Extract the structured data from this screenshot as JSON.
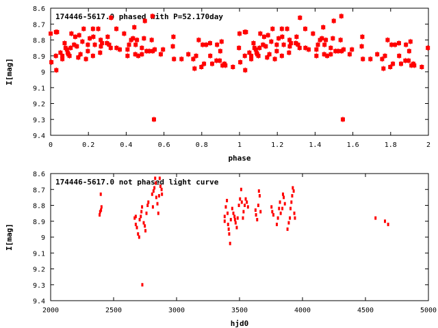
{
  "chart_data": [
    {
      "type": "scatter",
      "title": "174446-5617.0 phased with P=52.170day",
      "xlabel": "phase",
      "ylabel": "I[mag]",
      "xlim": [
        0,
        2
      ],
      "ylim": [
        9.4,
        8.6
      ],
      "y_inverted": true,
      "xticks": [
        "0",
        "0.2",
        "0.4",
        "0.6",
        "0.8",
        "1",
        "1.2",
        "1.4",
        "1.6",
        "1.8",
        "2"
      ],
      "yticks": [
        "8.6",
        "8.7",
        "8.8",
        "8.9",
        "9",
        "9.1",
        "9.2",
        "9.3",
        "9.4"
      ],
      "grid": false,
      "color": "#ff0000",
      "phase_repeated_cycles": 2,
      "points": [
        [
          0.0,
          8.76
        ],
        [
          0.004,
          8.94
        ],
        [
          0.028,
          8.75
        ],
        [
          0.034,
          8.75
        ],
        [
          0.028,
          8.9
        ],
        [
          0.03,
          8.99
        ],
        [
          0.052,
          8.88
        ],
        [
          0.062,
          8.9
        ],
        [
          0.062,
          8.92
        ],
        [
          0.074,
          8.82
        ],
        [
          0.079,
          8.85
        ],
        [
          0.086,
          8.86
        ],
        [
          0.09,
          8.88
        ],
        [
          0.094,
          8.89
        ],
        [
          0.1,
          8.9
        ],
        [
          0.106,
          8.85
        ],
        [
          0.11,
          8.76
        ],
        [
          0.124,
          8.83
        ],
        [
          0.13,
          8.78
        ],
        [
          0.139,
          8.84
        ],
        [
          0.146,
          8.91
        ],
        [
          0.151,
          8.77
        ],
        [
          0.158,
          8.89
        ],
        [
          0.168,
          8.81
        ],
        [
          0.175,
          8.73
        ],
        [
          0.187,
          8.92
        ],
        [
          0.197,
          8.83
        ],
        [
          0.197,
          8.87
        ],
        [
          0.207,
          8.79
        ],
        [
          0.224,
          8.73
        ],
        [
          0.226,
          8.78
        ],
        [
          0.224,
          8.9
        ],
        [
          0.234,
          8.83
        ],
        [
          0.252,
          8.73
        ],
        [
          0.262,
          8.88
        ],
        [
          0.265,
          8.8
        ],
        [
          0.266,
          8.84
        ],
        [
          0.272,
          8.82
        ],
        [
          0.298,
          8.82
        ],
        [
          0.302,
          8.78
        ],
        [
          0.31,
          8.83
        ],
        [
          0.318,
          8.85
        ],
        [
          0.32,
          8.66
        ],
        [
          0.348,
          8.73
        ],
        [
          0.349,
          8.85
        ],
        [
          0.366,
          8.86
        ],
        [
          0.389,
          8.76
        ],
        [
          0.407,
          8.86
        ],
        [
          0.407,
          8.9
        ],
        [
          0.415,
          8.83
        ],
        [
          0.426,
          8.8
        ],
        [
          0.436,
          8.79
        ],
        [
          0.443,
          8.72
        ],
        [
          0.448,
          8.89
        ],
        [
          0.45,
          8.83
        ],
        [
          0.457,
          8.8
        ],
        [
          0.464,
          8.9
        ],
        [
          0.483,
          8.85
        ],
        [
          0.483,
          8.89
        ],
        [
          0.494,
          8.79
        ],
        [
          0.499,
          8.68
        ],
        [
          0.508,
          8.87
        ],
        [
          0.522,
          8.87
        ],
        [
          0.535,
          8.8
        ],
        [
          0.539,
          8.65
        ],
        [
          0.54,
          8.87
        ],
        [
          0.547,
          9.3
        ],
        [
          0.551,
          8.86
        ],
        [
          0.583,
          8.89
        ],
        [
          0.595,
          8.86
        ],
        [
          0.647,
          8.84
        ],
        [
          0.65,
          8.78
        ],
        [
          0.653,
          8.92
        ],
        [
          0.693,
          8.92
        ],
        [
          0.729,
          8.89
        ],
        [
          0.755,
          8.92
        ],
        [
          0.762,
          8.98
        ],
        [
          0.77,
          8.9
        ],
        [
          0.784,
          8.8
        ],
        [
          0.798,
          8.97
        ],
        [
          0.805,
          8.83
        ],
        [
          0.812,
          8.95
        ],
        [
          0.823,
          8.83
        ],
        [
          0.844,
          8.82
        ],
        [
          0.845,
          8.9
        ],
        [
          0.855,
          8.95
        ],
        [
          0.878,
          8.93
        ],
        [
          0.881,
          8.83
        ],
        [
          0.895,
          8.93
        ],
        [
          0.898,
          8.87
        ],
        [
          0.905,
          8.81
        ],
        [
          0.91,
          8.96
        ],
        [
          0.92,
          8.95
        ],
        [
          0.925,
          8.96
        ],
        [
          0.965,
          8.97
        ],
        [
          0.997,
          8.85
        ]
      ]
    },
    {
      "type": "scatter",
      "title": "174446-5617.0 not phased light curve",
      "xlabel": "hjd0",
      "ylabel": "I[mag]",
      "xlim": [
        2000,
        5000
      ],
      "ylim": [
        9.4,
        8.6
      ],
      "y_inverted": true,
      "xticks": [
        "2000",
        "2500",
        "3000",
        "3500",
        "4000",
        "4500",
        "5000"
      ],
      "yticks": [
        "8.6",
        "8.7",
        "8.8",
        "8.9",
        "9",
        "9.1",
        "9.2",
        "9.3",
        "9.4"
      ],
      "grid": false,
      "color": "#ff0000",
      "points": [
        [
          2398,
          8.73
        ],
        [
          2404,
          8.81
        ],
        [
          2400,
          8.83
        ],
        [
          2393,
          8.84
        ],
        [
          2389,
          8.86
        ],
        [
          2667,
          8.88
        ],
        [
          2676,
          8.87
        ],
        [
          2676,
          8.92
        ],
        [
          2685,
          8.94
        ],
        [
          2694,
          8.98
        ],
        [
          2703,
          9.0
        ],
        [
          2707,
          8.89
        ],
        [
          2716,
          8.87
        ],
        [
          2721,
          8.84
        ],
        [
          2726,
          8.81
        ],
        [
          2728,
          9.3
        ],
        [
          2739,
          8.91
        ],
        [
          2748,
          8.93
        ],
        [
          2753,
          8.96
        ],
        [
          2761,
          8.85
        ],
        [
          2770,
          8.8
        ],
        [
          2776,
          8.78
        ],
        [
          2806,
          8.73
        ],
        [
          2812,
          8.81
        ],
        [
          2817,
          8.71
        ],
        [
          2824,
          8.69
        ],
        [
          2830,
          8.63
        ],
        [
          2835,
          8.66
        ],
        [
          2839,
          8.75
        ],
        [
          2848,
          8.79
        ],
        [
          2855,
          8.85
        ],
        [
          2861,
          8.74
        ],
        [
          2866,
          8.63
        ],
        [
          2872,
          8.68
        ],
        [
          2881,
          8.7
        ],
        [
          2884,
          8.73
        ],
        [
          3382,
          8.87
        ],
        [
          3382,
          8.9
        ],
        [
          3391,
          8.81
        ],
        [
          3400,
          8.77
        ],
        [
          3405,
          8.85
        ],
        [
          3409,
          8.92
        ],
        [
          3414,
          8.95
        ],
        [
          3418,
          8.98
        ],
        [
          3425,
          9.04
        ],
        [
          3431,
          8.89
        ],
        [
          3442,
          8.82
        ],
        [
          3451,
          8.85
        ],
        [
          3460,
          8.87
        ],
        [
          3464,
          8.89
        ],
        [
          3469,
          8.91
        ],
        [
          3478,
          8.94
        ],
        [
          3485,
          8.88
        ],
        [
          3495,
          8.8
        ],
        [
          3504,
          8.76
        ],
        [
          3513,
          8.7
        ],
        [
          3518,
          8.78
        ],
        [
          3527,
          8.88
        ],
        [
          3532,
          8.84
        ],
        [
          3541,
          8.8
        ],
        [
          3549,
          8.76
        ],
        [
          3558,
          8.78
        ],
        [
          3567,
          8.81
        ],
        [
          3627,
          8.83
        ],
        [
          3631,
          8.86
        ],
        [
          3640,
          8.89
        ],
        [
          3649,
          8.8
        ],
        [
          3654,
          8.71
        ],
        [
          3660,
          8.74
        ],
        [
          3667,
          8.84
        ],
        [
          3754,
          8.81
        ],
        [
          3760,
          8.84
        ],
        [
          3769,
          8.86
        ],
        [
          3796,
          8.92
        ],
        [
          3805,
          8.88
        ],
        [
          3814,
          8.82
        ],
        [
          3821,
          8.78
        ],
        [
          3827,
          8.85
        ],
        [
          3840,
          8.82
        ],
        [
          3845,
          8.73
        ],
        [
          3851,
          8.75
        ],
        [
          3860,
          8.79
        ],
        [
          3881,
          8.95
        ],
        [
          3891,
          8.91
        ],
        [
          3900,
          8.88
        ],
        [
          3905,
          8.82
        ],
        [
          3912,
          8.78
        ],
        [
          3918,
          8.74
        ],
        [
          3923,
          8.69
        ],
        [
          3930,
          8.71
        ],
        [
          3935,
          8.85
        ],
        [
          3940,
          8.88
        ],
        [
          4580,
          8.88
        ],
        [
          4655,
          8.9
        ],
        [
          4680,
          8.92
        ]
      ]
    }
  ]
}
